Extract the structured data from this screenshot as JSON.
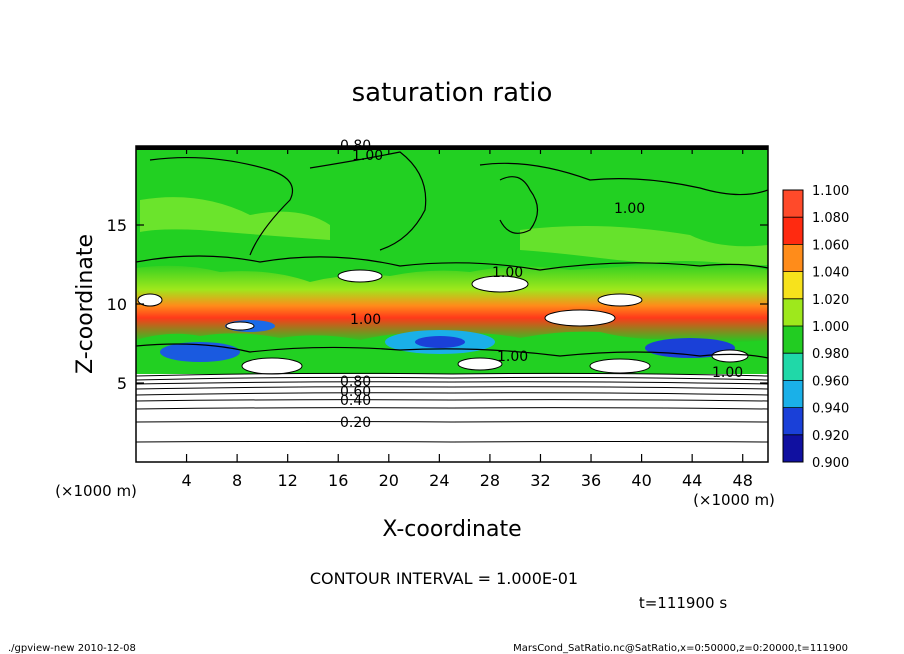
{
  "chart_data": {
    "type": "heatmap",
    "title": "saturation ratio",
    "xlabel": "X-coordinate",
    "ylabel": "Z-coordinate",
    "x_unit": "(×1000 m)",
    "y_unit": "(×1000 m)",
    "xlim": [
      0,
      50
    ],
    "ylim": [
      0,
      20
    ],
    "x_ticks": [
      "4",
      "8",
      "12",
      "16",
      "20",
      "24",
      "28",
      "32",
      "36",
      "40",
      "44",
      "48"
    ],
    "y_ticks": [
      "5",
      "10",
      "15"
    ],
    "colorbar": {
      "labels": [
        "1.100",
        "1.080",
        "1.060",
        "1.040",
        "1.020",
        "1.000",
        "0.980",
        "0.960",
        "0.940",
        "0.920",
        "0.900"
      ],
      "colors": [
        "#ff9a9a",
        "#ff4a2a",
        "#ff2a10",
        "#ff8c1a",
        "#f7e21c",
        "#9ee81c",
        "#22cc22",
        "#20d8a8",
        "#1ab0e8",
        "#1a40d8",
        "#1010a0",
        "#5a10a0"
      ]
    },
    "contour_labels": [
      "0.80",
      "1.00",
      "1.00",
      "1.00",
      "1.00",
      "1.00",
      "1.00",
      "0.80",
      "0.60",
      "0.40",
      "0.20"
    ],
    "contour_interval": "CONTOUR INTERVAL = 1.000E-01",
    "time_label": "t=111900 s"
  },
  "footer": {
    "left": "./gpview-new   2010-12-08",
    "right": "MarsCond_SatRatio.nc@SatRatio,x=0:50000,z=0:20000,t=111900"
  }
}
